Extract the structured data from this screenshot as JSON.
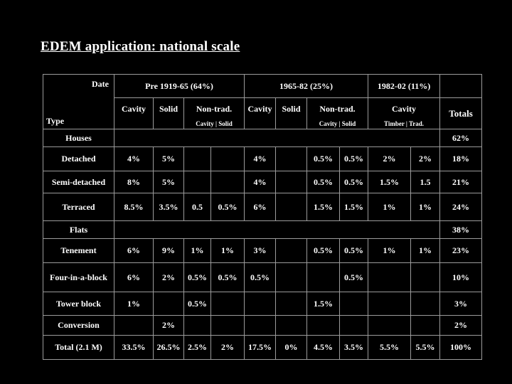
{
  "title": "EDEM application: national scale",
  "table": {
    "corner": {
      "date": "Date",
      "type": "Type"
    },
    "eras": [
      {
        "label": "Pre 1919-65 (64%)"
      },
      {
        "label": "1965-82 (25%)"
      },
      {
        "label": "1982-02 (11%)"
      }
    ],
    "columns": [
      {
        "label": "Cavity",
        "sub": ""
      },
      {
        "label": "Solid",
        "sub": ""
      },
      {
        "label": "Non-trad.",
        "sub": "Cavity | Solid"
      },
      {
        "label": "Cavity",
        "sub": ""
      },
      {
        "label": "Solid",
        "sub": ""
      },
      {
        "label": "Non-trad.",
        "sub": "Cavity | Solid"
      },
      {
        "label": "Cavity",
        "sub": "Timber | Trad."
      },
      {
        "label": "Totals",
        "sub": ""
      }
    ],
    "rows": [
      {
        "label": "Houses",
        "group": true,
        "cells": [],
        "total": "62%"
      },
      {
        "label": "Detached",
        "group": false,
        "cells": [
          "4%",
          "5%",
          "",
          "",
          "4%",
          "",
          "0.5%",
          "0.5%",
          "2%",
          "2%"
        ],
        "total": "18%"
      },
      {
        "label": "Semi-detached",
        "group": false,
        "cells": [
          "8%",
          "5%",
          "",
          "",
          "4%",
          "",
          "0.5%",
          "0.5%",
          "1.5%",
          "1.5"
        ],
        "total": "21%"
      },
      {
        "label": "Terraced",
        "group": false,
        "cells": [
          "8.5%",
          "3.5%",
          "0.5",
          "0.5%",
          "6%",
          "",
          "1.5%",
          "1.5%",
          "1%",
          "1%"
        ],
        "total": "24%"
      },
      {
        "label": "Flats",
        "group": true,
        "cells": [],
        "total": "38%"
      },
      {
        "label": "Tenement",
        "group": false,
        "cells": [
          "6%",
          "9%",
          "1%",
          "1%",
          "3%",
          "",
          "0.5%",
          "0.5%",
          "1%",
          "1%"
        ],
        "total": "23%"
      },
      {
        "label": "Four-in-a-block",
        "group": false,
        "cells": [
          "6%",
          "2%",
          "0.5%",
          "0.5%",
          "0.5%",
          "",
          "",
          "0.5%",
          "",
          ""
        ],
        "total": "10%"
      },
      {
        "label": "Tower block",
        "group": false,
        "cells": [
          "1%",
          "",
          "0.5%",
          "",
          "",
          "",
          "1.5%",
          "",
          "",
          ""
        ],
        "total": "3%"
      },
      {
        "label": "Conversion",
        "group": false,
        "cells": [
          "",
          "2%",
          "",
          "",
          "",
          "",
          "",
          "",
          "",
          ""
        ],
        "total": "2%"
      },
      {
        "label": "Total (2.1 M)",
        "group": false,
        "cells": [
          "33.5%",
          "26.5%",
          "2.5%",
          "2%",
          "17.5%",
          "0%",
          "4.5%",
          "3.5%",
          "5.5%",
          "5.5%"
        ],
        "total": "100%"
      }
    ]
  }
}
